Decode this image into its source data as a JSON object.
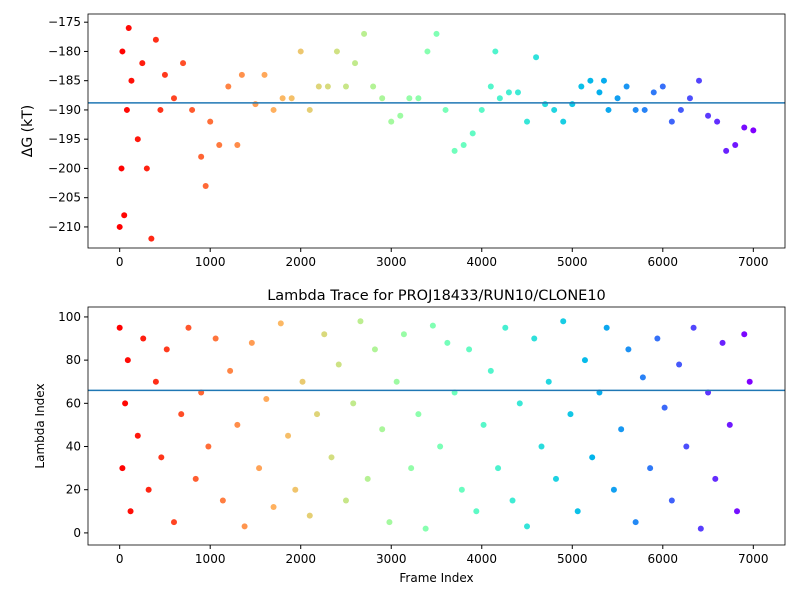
{
  "chart_data": [
    {
      "type": "scatter",
      "ylabel": "ΔG (kT)",
      "colormap": "rainbow_r",
      "x": [
        0,
        20,
        30,
        50,
        80,
        100,
        130,
        200,
        250,
        300,
        350,
        400,
        450,
        500,
        600,
        700,
        800,
        900,
        950,
        1000,
        1100,
        1200,
        1300,
        1350,
        1500,
        1600,
        1700,
        1800,
        1900,
        2000,
        2100,
        2200,
        2300,
        2400,
        2500,
        2600,
        2700,
        2800,
        2900,
        3000,
        3100,
        3200,
        3300,
        3400,
        3500,
        3600,
        3700,
        3800,
        3900,
        4000,
        4100,
        4150,
        4200,
        4300,
        4400,
        4500,
        4600,
        4700,
        4800,
        4900,
        5000,
        5100,
        5200,
        5300,
        5350,
        5400,
        5500,
        5600,
        5700,
        5800,
        5900,
        6000,
        6100,
        6200,
        6300,
        6400,
        6500,
        6600,
        6700,
        6800,
        6900,
        7000
      ],
      "values": [
        -210,
        -200,
        -180,
        -208,
        -190,
        -176,
        -185,
        -195,
        -182,
        -200,
        -212,
        -178,
        -190,
        -184,
        -188,
        -182,
        -190,
        -198,
        -203,
        -192,
        -196,
        -186,
        -196,
        -184,
        -189,
        -184,
        -190,
        -188,
        -188,
        -180,
        -190,
        -186,
        -186,
        -180,
        -186,
        -182,
        -177,
        -186,
        -188,
        -192,
        -191,
        -188,
        -188,
        -180,
        -177,
        -190,
        -197,
        -196,
        -194,
        -190,
        -186,
        -180,
        -188,
        -187,
        -187,
        -192,
        -181,
        -189,
        -190,
        -192,
        -189,
        -186,
        -185,
        -187,
        -185,
        -190,
        -188,
        -186,
        -190,
        -190,
        -187,
        -186,
        -192,
        -190,
        -188,
        -185,
        -191,
        -192,
        -197,
        -196,
        -193,
        -193.5
      ],
      "hline": -188.8,
      "hline_color": "#1f77b4",
      "xlim": [
        -350,
        7350
      ],
      "xticks": [
        0,
        1000,
        2000,
        3000,
        4000,
        5000,
        6000,
        7000
      ],
      "ylim": [
        -213.6,
        -173.6
      ],
      "yticks": [
        {
          "value": -210,
          "label": "−210"
        },
        {
          "value": -205,
          "label": "−205"
        },
        {
          "value": -200,
          "label": "−200"
        },
        {
          "value": -195,
          "label": "−195"
        },
        {
          "value": -190,
          "label": "−190"
        },
        {
          "value": -185,
          "label": "−185"
        },
        {
          "value": -180,
          "label": "−180"
        },
        {
          "value": -175,
          "label": "−175"
        }
      ]
    },
    {
      "type": "scatter",
      "title": "Lambda Trace for PROJ18433/RUN10/CLONE10",
      "xlabel": "Frame Index",
      "ylabel": "Lambda Index",
      "colormap": "rainbow_r",
      "x": [
        0,
        30,
        60,
        90,
        120,
        200,
        260,
        320,
        400,
        460,
        520,
        600,
        680,
        760,
        840,
        900,
        980,
        1060,
        1140,
        1220,
        1300,
        1380,
        1460,
        1540,
        1620,
        1700,
        1780,
        1860,
        1940,
        2020,
        2100,
        2180,
        2260,
        2340,
        2420,
        2500,
        2580,
        2660,
        2740,
        2820,
        2900,
        2980,
        3060,
        3140,
        3220,
        3300,
        3380,
        3460,
        3540,
        3620,
        3700,
        3780,
        3860,
        3940,
        4020,
        4100,
        4180,
        4260,
        4340,
        4420,
        4500,
        4580,
        4660,
        4740,
        4820,
        4900,
        4980,
        5060,
        5140,
        5220,
        5300,
        5380,
        5460,
        5540,
        5620,
        5700,
        5780,
        5860,
        5940,
        6020,
        6100,
        6180,
        6260,
        6340,
        6420,
        6500,
        6580,
        6660,
        6740,
        6820,
        6900,
        6960
      ],
      "values": [
        95,
        30,
        60,
        80,
        10,
        45,
        90,
        20,
        70,
        35,
        85,
        5,
        55,
        95,
        25,
        65,
        40,
        90,
        15,
        75,
        50,
        3,
        88,
        30,
        62,
        12,
        97,
        45,
        20,
        70,
        8,
        55,
        92,
        35,
        78,
        15,
        60,
        98,
        25,
        85,
        48,
        5,
        70,
        92,
        30,
        55,
        2,
        96,
        40,
        88,
        65,
        20,
        85,
        10,
        50,
        75,
        30,
        95,
        15,
        60,
        3,
        90,
        40,
        70,
        25,
        98,
        55,
        10,
        80,
        35,
        65,
        95,
        20,
        48,
        85,
        5,
        72,
        30,
        90,
        58,
        15,
        78,
        40,
        95,
        2,
        65,
        25,
        88,
        50,
        10,
        92,
        70
      ],
      "hline": 66,
      "hline_color": "#1f77b4",
      "xlim": [
        -350,
        7350
      ],
      "xticks": [
        0,
        1000,
        2000,
        3000,
        4000,
        5000,
        6000,
        7000
      ],
      "ylim": [
        -5.6,
        104.6
      ],
      "yticks": [
        0,
        20,
        40,
        60,
        80,
        100
      ]
    }
  ]
}
